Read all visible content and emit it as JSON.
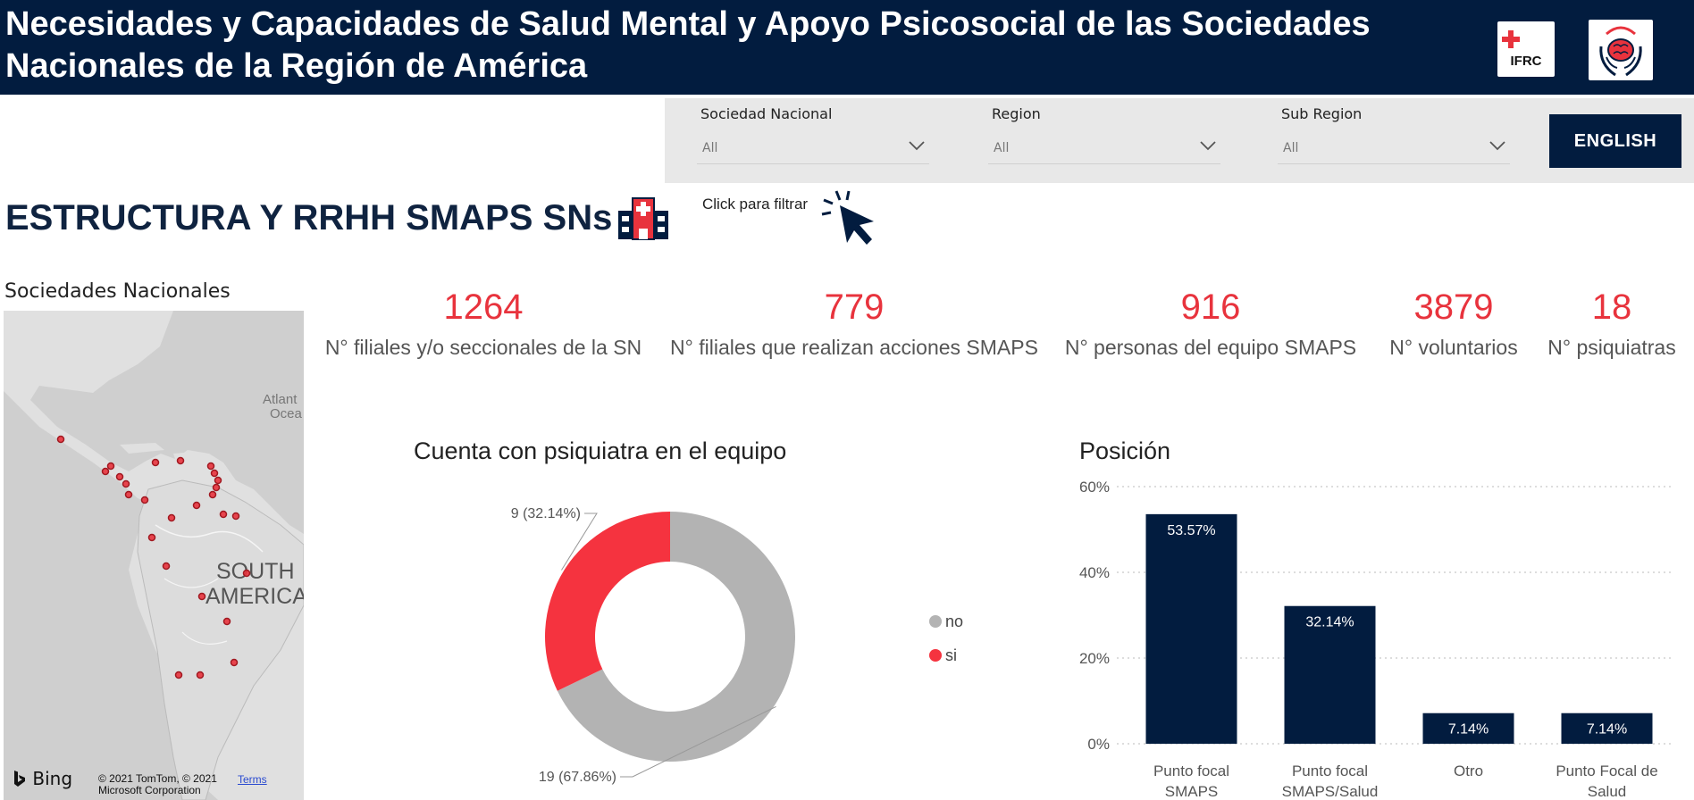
{
  "header": {
    "title": "Necesidades y Capacidades de Salud Mental y Apoyo Psicosocial de las Sociedades Nacionales de la Región de América",
    "logo_ifrc_text": "IFRC"
  },
  "filters": [
    {
      "label": "Sociedad Nacional",
      "value": "All"
    },
    {
      "label": "Region",
      "value": "All"
    },
    {
      "label": "Sub Region",
      "value": "All"
    }
  ],
  "language_button": "ENGLISH",
  "section": {
    "title": "ESTRUCTURA Y RRHH SMAPS SNs",
    "click_hint": "Click para filtrar"
  },
  "map": {
    "label": "Sociedades Nacionales",
    "ocean_label": "Atlant\nOcea",
    "continent_label": "SOUTH AMERICA",
    "bing": "Bing",
    "copyright": "© 2021 TomTom, © 2021 Microsoft Corporation",
    "terms": "Terms"
  },
  "kpis": [
    {
      "value": "1264",
      "label": "N° filiales y/o seccionales de la SN"
    },
    {
      "value": "779",
      "label": "N°  filiales que realizan acciones SMAPS"
    },
    {
      "value": "916",
      "label": "N° personas del equipo SMAPS"
    },
    {
      "value": "3879",
      "label": "N° voluntarios"
    },
    {
      "value": "18",
      "label": "N° psiquiatras"
    }
  ],
  "colors": {
    "navy": "#021c3f",
    "red": "#f5333f",
    "gray": "#b3b3b3"
  },
  "chart_data": [
    {
      "type": "pie",
      "title": "Cuenta con psiquiatra en el equipo",
      "categories": [
        "no",
        "si"
      ],
      "values": [
        19,
        9
      ],
      "data_labels": [
        "19 (67.86%)",
        "9 (32.14%)"
      ],
      "colors": [
        "#b3b3b3",
        "#f5333f"
      ],
      "legend": "right"
    },
    {
      "type": "bar",
      "title": "Posición",
      "categories": [
        "Punto focal SMAPS",
        "Punto focal SMAPS/Salud",
        "Otro",
        "Punto Focal de Salud"
      ],
      "values": [
        53.57,
        32.14,
        7.14,
        7.14
      ],
      "data_labels": [
        "53.57%",
        "32.14%",
        "7.14%",
        "7.14%"
      ],
      "yticks": [
        "0%",
        "20%",
        "40%",
        "60%"
      ],
      "ylim": [
        0,
        60
      ],
      "grid": true,
      "color": "#021c3f"
    }
  ]
}
